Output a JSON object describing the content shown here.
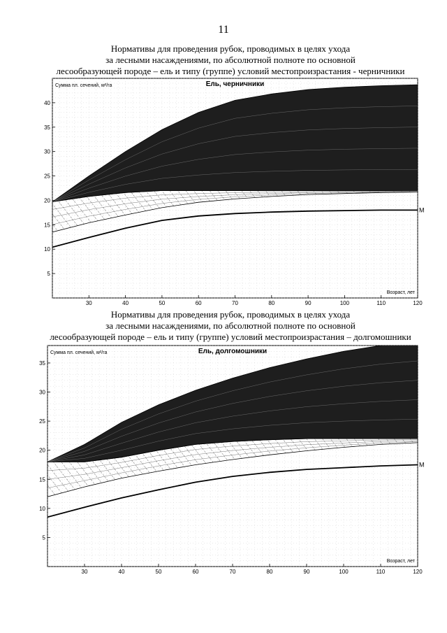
{
  "page_number": "11",
  "sections": [
    {
      "title_lines": [
        "Нормативы для проведения рубок, проводимых в целях ухода",
        "за лесными насаждениями, по абсолютной полноте по основной",
        "лесообразующей породе – ель и типу (группе) условий местопроизрастания - черничники"
      ]
    },
    {
      "title_lines": [
        "Нормативы для проведения рубок, проводимых в целях ухода",
        "за лесными насаждениями, по абсолютной полноте по основной",
        "лесообразующей породе – ель и типу (группе) условий местопроизрастания – долгомошники"
      ]
    }
  ],
  "chart_data": [
    {
      "type": "area",
      "title": "Ель, черничники",
      "ylabel": "Сумма пл. сечений, м²/га",
      "xlabel": "Возраст, лет",
      "xlim": [
        20,
        120
      ],
      "ylim": [
        0,
        45
      ],
      "x_ticks": [
        30,
        40,
        50,
        60,
        70,
        80,
        90,
        100,
        110,
        120
      ],
      "y_ticks": [
        5,
        10,
        15,
        20,
        25,
        30,
        35,
        40
      ],
      "curve_label": "М",
      "grid": true,
      "x": [
        20,
        30,
        40,
        50,
        60,
        70,
        80,
        90,
        100,
        110,
        120
      ],
      "bands": [
        {
          "name": "dark-zone",
          "lower": [
            19.7,
            20.8,
            21.6,
            22.0,
            22.0,
            22.0,
            22.0,
            22.0,
            22.0,
            22.0,
            22.0
          ],
          "upper": [
            19.7,
            25.0,
            30.0,
            34.5,
            38.0,
            40.5,
            41.8,
            42.7,
            43.2,
            43.5,
            43.7
          ],
          "fill": "#1e1e1e"
        },
        {
          "name": "hatched-zone",
          "lower": [
            13.5,
            15.4,
            17.0,
            18.5,
            19.6,
            20.3,
            20.8,
            21.2,
            21.4,
            21.6,
            21.7
          ],
          "upper": [
            19.7,
            20.8,
            21.6,
            22.0,
            22.0,
            22.0,
            22.0,
            22.0,
            22.0,
            22.0,
            22.0
          ],
          "fill": "hatch"
        }
      ],
      "series": [
        {
          "name": "М",
          "values": [
            10.4,
            12.4,
            14.3,
            15.9,
            16.8,
            17.3,
            17.6,
            17.8,
            17.9,
            18.0,
            18.0
          ]
        }
      ]
    },
    {
      "type": "area",
      "title": "Ель, долгомошники",
      "ylabel": "Сумма пл. сечений, м²/га",
      "xlabel": "Возраст, лет",
      "xlim": [
        20,
        120
      ],
      "ylim": [
        0,
        38
      ],
      "x_ticks": [
        30,
        40,
        50,
        60,
        70,
        80,
        90,
        100,
        110,
        120
      ],
      "y_ticks": [
        5,
        10,
        15,
        20,
        25,
        30,
        35
      ],
      "curve_label": "М",
      "grid": true,
      "x": [
        20,
        30,
        40,
        50,
        60,
        70,
        80,
        90,
        100,
        110,
        120
      ],
      "bands": [
        {
          "name": "dark-zone",
          "lower": [
            18.0,
            18.0,
            18.8,
            20.0,
            21.0,
            21.5,
            21.8,
            22.0,
            22.0,
            22.0,
            22.0
          ],
          "upper": [
            18.0,
            21.0,
            24.8,
            27.8,
            30.3,
            32.4,
            34.2,
            35.7,
            37.0,
            38.0,
            38.7
          ],
          "fill": "#1e1e1e"
        },
        {
          "name": "hatched-zone",
          "lower": [
            12.0,
            13.7,
            15.2,
            16.4,
            17.5,
            18.4,
            19.2,
            19.9,
            20.5,
            21.0,
            21.3
          ],
          "upper": [
            18.0,
            18.0,
            18.8,
            20.0,
            21.0,
            21.5,
            21.8,
            22.0,
            22.0,
            22.0,
            22.0
          ],
          "fill": "hatch"
        }
      ],
      "series": [
        {
          "name": "М",
          "values": [
            8.5,
            10.2,
            11.8,
            13.2,
            14.5,
            15.5,
            16.2,
            16.7,
            17.0,
            17.3,
            17.5
          ]
        }
      ]
    }
  ]
}
